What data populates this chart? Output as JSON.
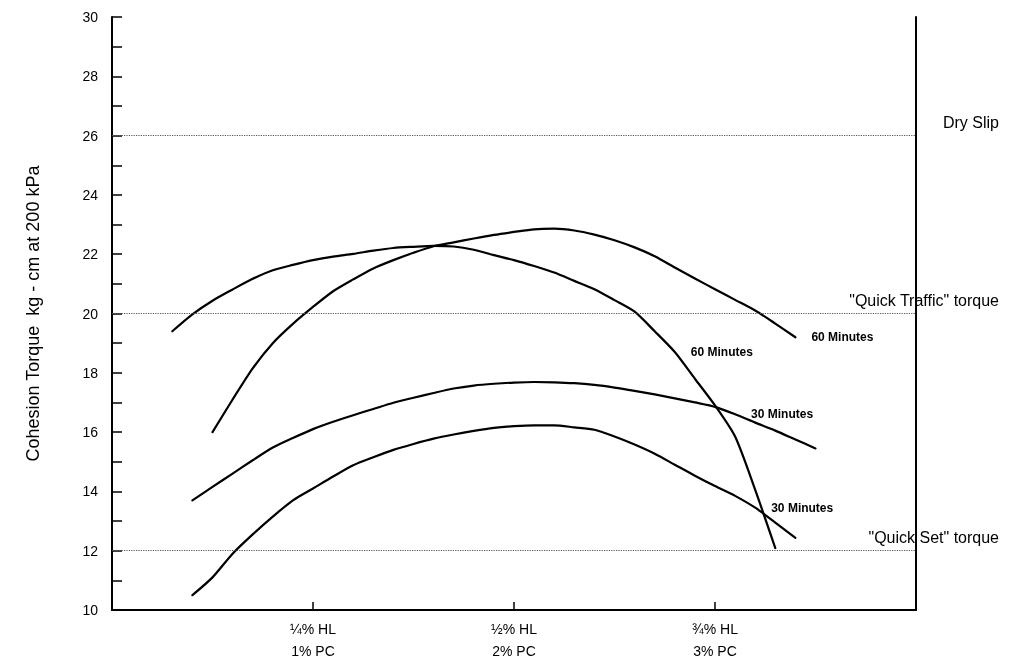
{
  "chart_data": {
    "type": "line",
    "ylabel": "Cohesion Torque  kg - cm at 200 kPa",
    "categories": [
      null,
      null,
      null,
      null,
      null,
      null,
      null,
      null,
      null,
      null,
      "¼% HL\n1% PC",
      null,
      null,
      null,
      null,
      null,
      null,
      null,
      null,
      null,
      "½% HL\n2% PC",
      null,
      null,
      null,
      null,
      null,
      null,
      null,
      null,
      null,
      "¾% HL\n3% PC",
      null,
      null,
      null,
      null,
      null,
      null,
      null,
      null,
      null,
      null
    ],
    "ylim": [
      10,
      30
    ],
    "yticks": [
      10,
      {
        "value": 11,
        "label": null
      },
      12,
      {
        "value": 13,
        "label": null
      },
      14,
      {
        "value": 15,
        "label": null
      },
      16,
      {
        "value": 17,
        "label": null
      },
      18,
      {
        "value": 19,
        "label": null
      },
      20,
      {
        "value": 21,
        "label": null
      },
      22,
      {
        "value": 23,
        "label": null
      },
      24,
      {
        "value": 25,
        "label": null
      },
      26,
      {
        "value": 27,
        "label": null
      },
      28,
      {
        "value": 29,
        "label": null
      },
      30
    ],
    "grid": false,
    "legend": false,
    "marker": "none",
    "line_style": "solid",
    "series": [
      {
        "name": "60 Minutes",
        "color": "#000000",
        "values": [
          null,
          null,
          null,
          19.4,
          19.97,
          20.43,
          20.81,
          21.17,
          21.46,
          21.64,
          21.8,
          21.92,
          22.01,
          22.12,
          22.21,
          22.25,
          22.28,
          22.26,
          22.15,
          21.97,
          21.8,
          21.6,
          21.38,
          21.1,
          20.82,
          20.45,
          20.06,
          19.4,
          18.7,
          17.8,
          16.9,
          15.85,
          14.05,
          12.09,
          null,
          null,
          null,
          null,
          null,
          null,
          null
        ]
      },
      {
        "name": "60 Minutes",
        "color": "#000000",
        "values": [
          null,
          null,
          null,
          null,
          null,
          16.0,
          17.1,
          18.15,
          19.0,
          19.65,
          20.22,
          20.75,
          21.15,
          21.52,
          21.8,
          22.05,
          22.27,
          22.4,
          22.53,
          22.65,
          22.75,
          22.84,
          22.86,
          22.8,
          22.66,
          22.47,
          22.23,
          21.93,
          21.55,
          21.18,
          20.82,
          20.46,
          20.1,
          19.66,
          19.2,
          null,
          null,
          null,
          null,
          null,
          null
        ]
      },
      {
        "name": "30 Minutes",
        "color": "#000000",
        "values": [
          null,
          null,
          null,
          null,
          13.7,
          14.15,
          14.6,
          15.05,
          15.48,
          15.8,
          16.1,
          16.35,
          16.57,
          16.78,
          16.99,
          17.16,
          17.32,
          17.47,
          17.57,
          17.63,
          17.67,
          17.69,
          17.68,
          17.65,
          17.59,
          17.5,
          17.39,
          17.27,
          17.14,
          17.0,
          16.85,
          16.6,
          16.32,
          16.05,
          15.75,
          15.45,
          null,
          null,
          null,
          null,
          null
        ]
      },
      {
        "name": "30 Minutes",
        "color": "#000000",
        "values": [
          null,
          null,
          null,
          null,
          10.5,
          11.1,
          11.9,
          12.55,
          13.15,
          13.7,
          14.1,
          14.5,
          14.88,
          15.15,
          15.4,
          15.6,
          15.78,
          15.92,
          16.04,
          16.14,
          16.2,
          16.23,
          16.23,
          16.16,
          16.08,
          15.85,
          15.58,
          15.27,
          14.9,
          14.53,
          14.18,
          13.85,
          13.45,
          12.95,
          12.43,
          null,
          null,
          null,
          null,
          null,
          null
        ]
      }
    ],
    "ref_lines": [
      {
        "axis": "y",
        "value": 26,
        "label": "Dry Slip",
        "color": "#555555",
        "line_style": "dotted"
      },
      {
        "axis": "y",
        "value": 20,
        "label": "\"Quick Traffic\" torque",
        "color": "#555555",
        "line_style": "dotted"
      },
      {
        "axis": "y",
        "value": 12,
        "label": "\"Quick Set\" torque",
        "color": "#555555",
        "line_style": "dotted"
      }
    ]
  }
}
